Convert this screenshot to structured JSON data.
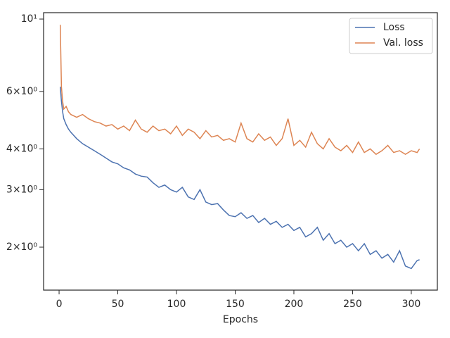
{
  "chart_data": {
    "type": "line",
    "xlabel": "Epochs",
    "x": [
      1,
      2,
      3,
      4,
      6,
      8,
      10,
      15,
      20,
      25,
      30,
      35,
      40,
      45,
      50,
      55,
      60,
      65,
      70,
      75,
      80,
      85,
      90,
      95,
      100,
      105,
      110,
      115,
      120,
      125,
      130,
      135,
      140,
      145,
      150,
      155,
      160,
      165,
      170,
      175,
      180,
      185,
      190,
      195,
      200,
      205,
      210,
      215,
      220,
      225,
      230,
      235,
      240,
      245,
      250,
      255,
      260,
      265,
      270,
      275,
      280,
      285,
      290,
      295,
      300,
      305,
      307
    ],
    "series": [
      {
        "name": "Loss",
        "color": "#4c72b0",
        "values": [
          6.2,
          5.6,
          5.2,
          4.95,
          4.75,
          4.6,
          4.5,
          4.3,
          4.15,
          4.05,
          3.95,
          3.85,
          3.75,
          3.65,
          3.6,
          3.5,
          3.45,
          3.35,
          3.3,
          3.28,
          3.15,
          3.05,
          3.1,
          3.0,
          2.95,
          3.05,
          2.85,
          2.8,
          3.0,
          2.75,
          2.7,
          2.72,
          2.6,
          2.5,
          2.48,
          2.55,
          2.45,
          2.5,
          2.38,
          2.45,
          2.35,
          2.4,
          2.3,
          2.35,
          2.25,
          2.3,
          2.15,
          2.2,
          2.3,
          2.1,
          2.2,
          2.05,
          2.1,
          2.0,
          2.05,
          1.95,
          2.05,
          1.9,
          1.95,
          1.85,
          1.9,
          1.8,
          1.95,
          1.75,
          1.72,
          1.82,
          1.83
        ]
      },
      {
        "name": "Val. loss",
        "color": "#dd8452",
        "values": [
          9.6,
          6.2,
          5.6,
          5.3,
          5.4,
          5.2,
          5.1,
          5.0,
          5.1,
          4.95,
          4.85,
          4.8,
          4.7,
          4.75,
          4.6,
          4.7,
          4.55,
          4.9,
          4.6,
          4.5,
          4.7,
          4.55,
          4.6,
          4.45,
          4.7,
          4.4,
          4.6,
          4.5,
          4.3,
          4.55,
          4.35,
          4.4,
          4.25,
          4.3,
          4.2,
          4.8,
          4.3,
          4.2,
          4.45,
          4.25,
          4.35,
          4.1,
          4.3,
          4.95,
          4.1,
          4.25,
          4.05,
          4.5,
          4.15,
          4.0,
          4.3,
          4.05,
          3.95,
          4.1,
          3.9,
          4.2,
          3.9,
          4.0,
          3.85,
          3.95,
          4.1,
          3.9,
          3.95,
          3.85,
          3.95,
          3.9,
          4.0
        ]
      }
    ],
    "xlim": [
      -13.2,
      322.2
    ],
    "xticks": [
      0,
      50,
      100,
      150,
      200,
      250,
      300
    ],
    "ylim": [
      1.477,
      10.46
    ],
    "ylog": true,
    "yticks": [
      {
        "value": 2,
        "label": "2×10⁰"
      },
      {
        "value": 3,
        "label": "3×10⁰"
      },
      {
        "value": 4,
        "label": "4×10⁰"
      },
      {
        "value": 6,
        "label": "6×10⁰"
      },
      {
        "value": 10,
        "label": "10¹"
      }
    ],
    "legend": "upper right"
  }
}
